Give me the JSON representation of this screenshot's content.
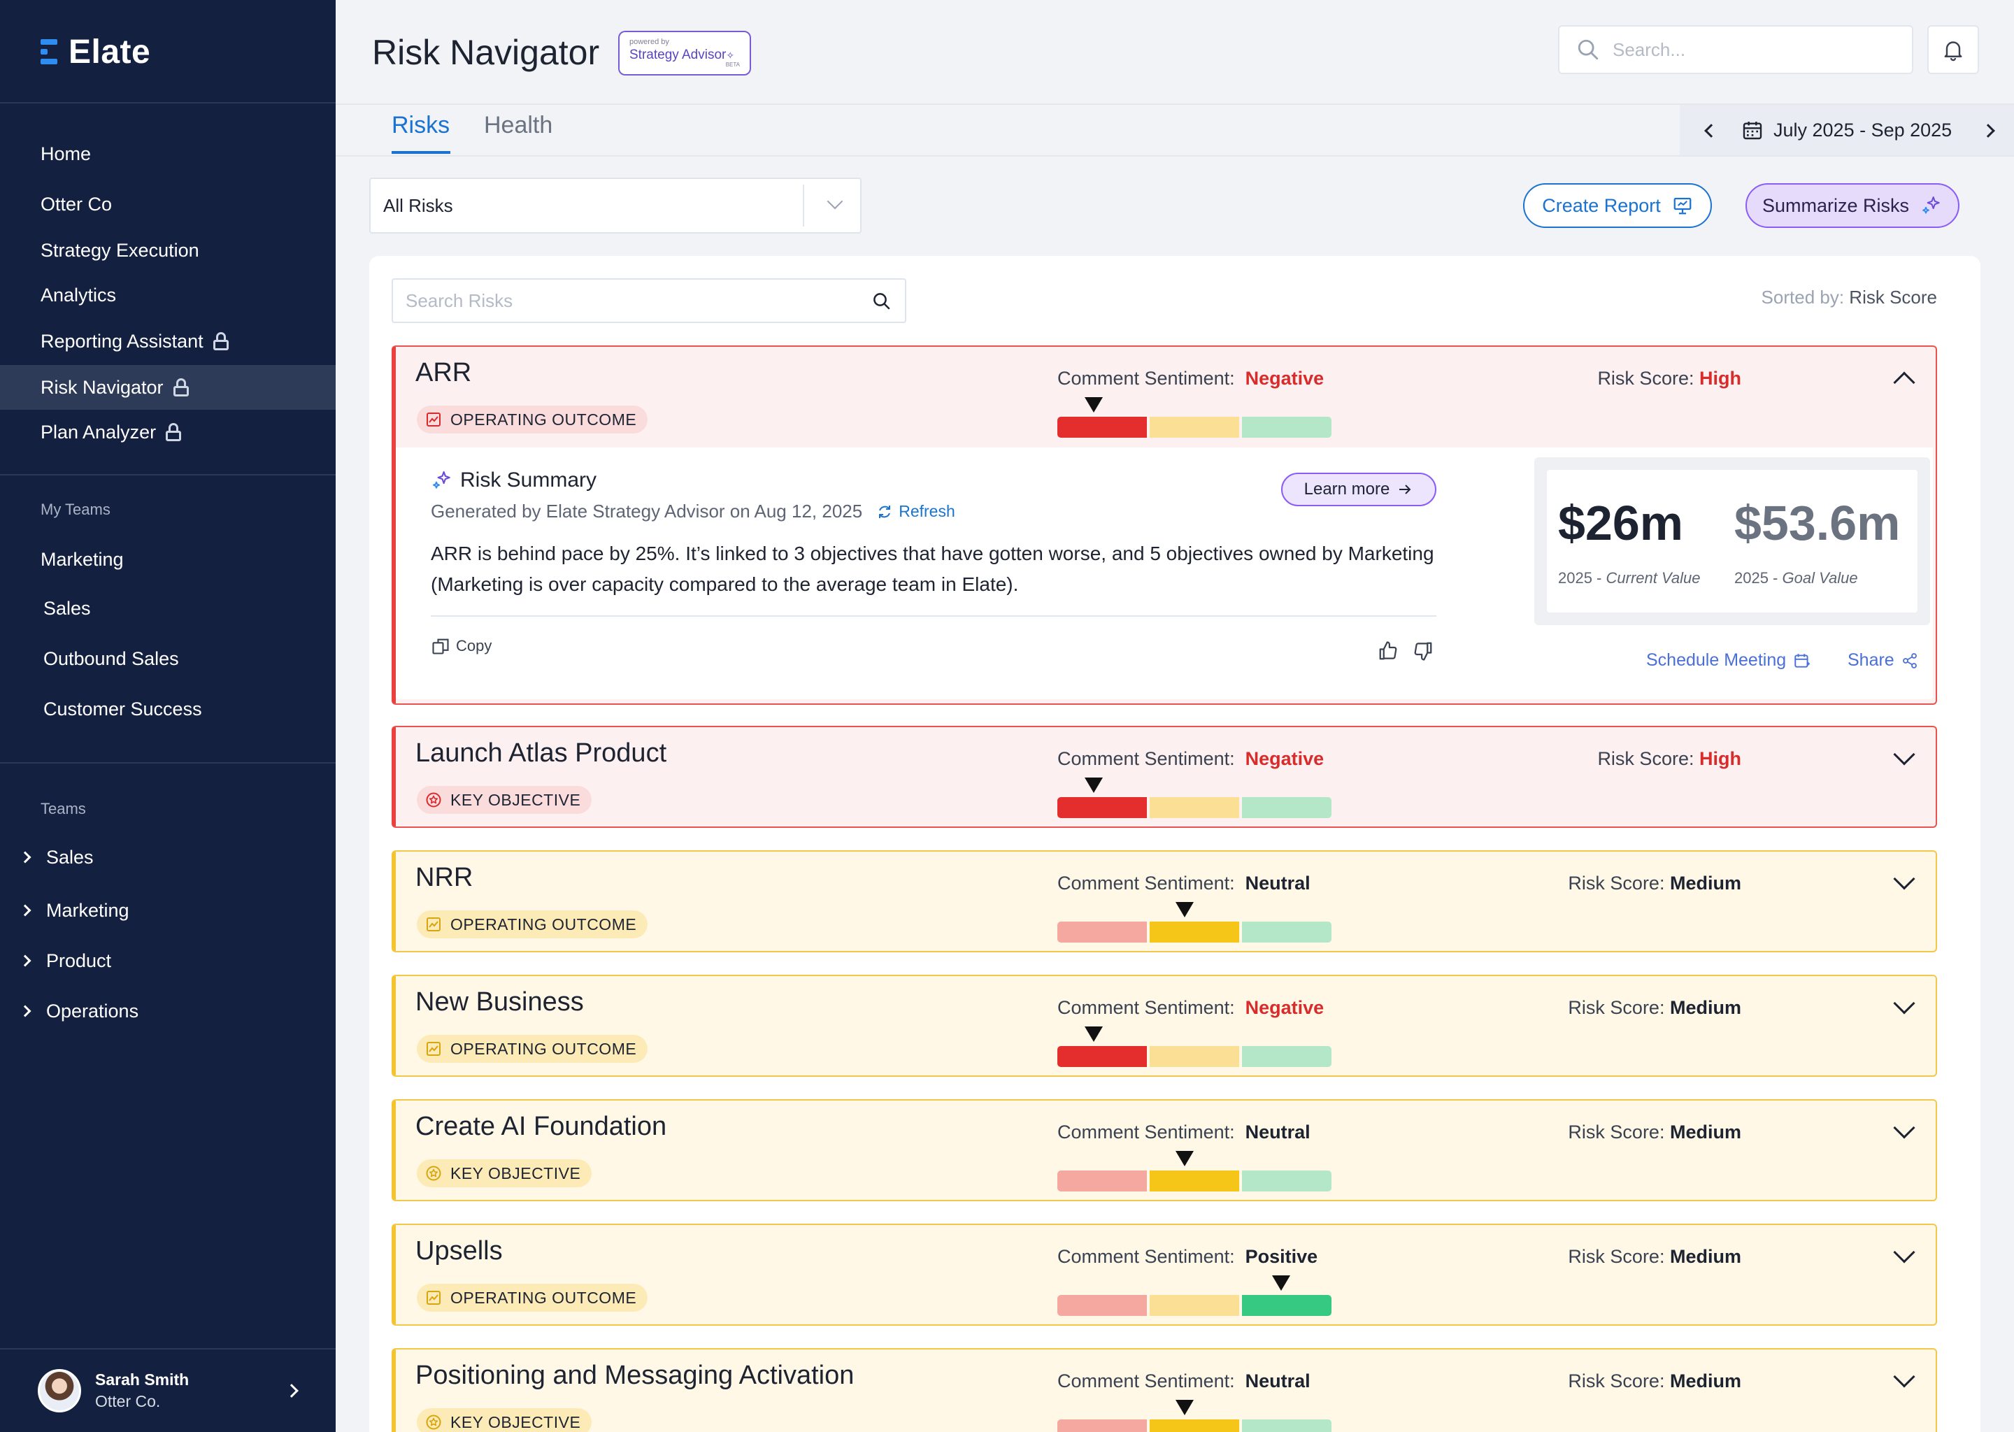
{
  "app": {
    "logo": "Elate"
  },
  "sidebar": {
    "nav": [
      {
        "label": "Home",
        "locked": false,
        "active": false
      },
      {
        "label": "Otter Co",
        "locked": false,
        "active": false
      },
      {
        "label": "Strategy Execution",
        "locked": false,
        "active": false
      },
      {
        "label": "Analytics",
        "locked": false,
        "active": false
      },
      {
        "label": "Reporting Assistant",
        "locked": true,
        "active": false
      },
      {
        "label": "Risk Navigator",
        "locked": true,
        "active": true
      },
      {
        "label": "Plan Analyzer",
        "locked": true,
        "active": false
      }
    ],
    "my_teams_title": "My Teams",
    "my_teams": [
      "Marketing",
      "Sales",
      "Outbound Sales",
      "Customer Success"
    ],
    "teams_title": "Teams",
    "teams": [
      "Sales",
      "Marketing",
      "Product",
      "Operations"
    ],
    "user": {
      "name": "Sarah Smith",
      "org": "Otter Co."
    }
  },
  "header": {
    "title": "Risk Navigator",
    "badge": {
      "small": "powered by",
      "main": "Strategy Advisor",
      "beta": "BETA"
    },
    "search_placeholder": "Search..."
  },
  "tabs": [
    {
      "label": "Risks",
      "active": true
    },
    {
      "label": "Health",
      "active": false
    }
  ],
  "date_range": "July 2025 - Sep 2025",
  "filter": {
    "selected": "All Risks"
  },
  "actions": {
    "create_report": "Create Report",
    "summarize": "Summarize Risks"
  },
  "risk_list": {
    "search_placeholder": "Search Risks",
    "sorted_prefix": "Sorted by:",
    "sorted_value": "Risk Score"
  },
  "labels": {
    "sentiment": "Comment Sentiment:",
    "score": "Risk Score:"
  },
  "colors": {
    "negative_strong": "#e42d2d",
    "negative_light": "#f4a8a0",
    "neutral_strong": "#f5c518",
    "neutral_light": "#fbdf94",
    "positive_strong": "#35c982",
    "positive_light": "#b4e6c8"
  },
  "risks": [
    {
      "title": "ARR",
      "tag": "OPERATING OUTCOME",
      "tag_type": "outcome",
      "sentiment": "Negative",
      "score": "High",
      "level": "red",
      "expanded": true
    },
    {
      "title": "Launch Atlas Product",
      "tag": "KEY OBJECTIVE",
      "tag_type": "objective",
      "sentiment": "Negative",
      "score": "High",
      "level": "red",
      "expanded": false
    },
    {
      "title": "NRR",
      "tag": "OPERATING OUTCOME",
      "tag_type": "outcome",
      "sentiment": "Neutral",
      "score": "Medium",
      "level": "yel",
      "expanded": false
    },
    {
      "title": "New Business",
      "tag": "OPERATING OUTCOME",
      "tag_type": "outcome",
      "sentiment": "Negative",
      "score": "Medium",
      "level": "yel",
      "expanded": false
    },
    {
      "title": "Create AI Foundation",
      "tag": "KEY OBJECTIVE",
      "tag_type": "objective",
      "sentiment": "Neutral",
      "score": "Medium",
      "level": "yel",
      "expanded": false
    },
    {
      "title": "Upsells",
      "tag": "OPERATING OUTCOME",
      "tag_type": "outcome",
      "sentiment": "Positive",
      "score": "Medium",
      "level": "yel",
      "expanded": false
    },
    {
      "title": "Positioning and Messaging Activation",
      "tag": "KEY OBJECTIVE",
      "tag_type": "objective",
      "sentiment": "Neutral",
      "score": "Medium",
      "level": "yel",
      "expanded": false
    }
  ],
  "summary": {
    "title": "Risk Summary",
    "generated": "Generated by Elate Strategy Advisor on Aug 12, 2025",
    "refresh": "Refresh",
    "learn_more": "Learn more",
    "text": "ARR is behind pace by 25%. It’s linked to 3 objectives that have gotten worse, and 5 objectives owned by Marketing (Marketing is over capacity compared to the average team in Elate).",
    "copy": "Copy",
    "current_value": "$26m",
    "current_caption_year": "2025 -",
    "current_caption": "Current Value",
    "goal_value": "$53.6m",
    "goal_caption_year": "2025 -",
    "goal_caption": "Goal Value",
    "schedule": "Schedule Meeting",
    "share": "Share"
  }
}
